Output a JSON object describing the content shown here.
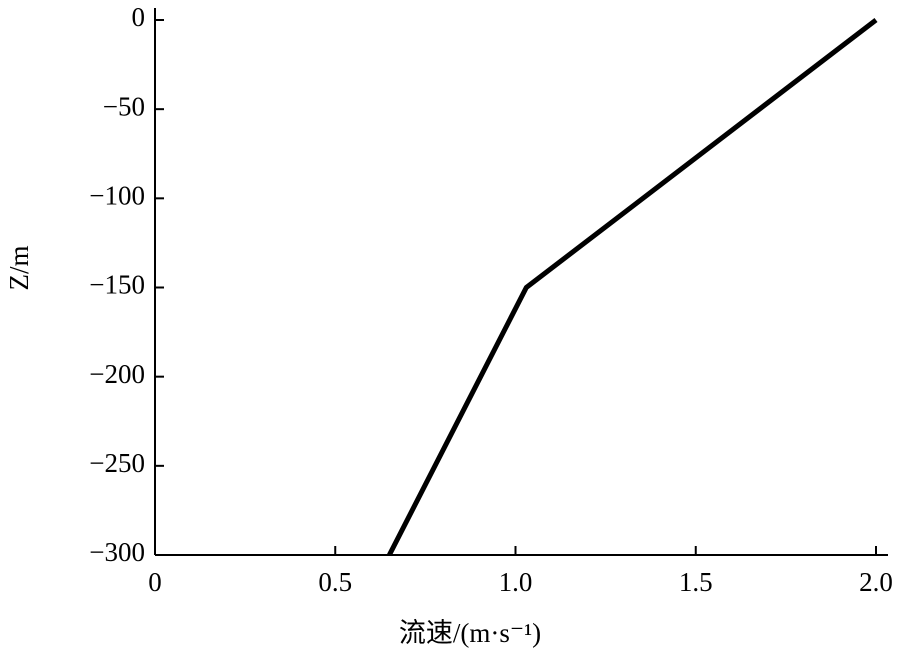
{
  "chart_data": {
    "type": "line",
    "xlabel": "流速/(m·s⁻¹)",
    "ylabel": "Z/m",
    "x": [
      0.65,
      1.03,
      2.0
    ],
    "series": [
      {
        "values": [
          -300,
          -150,
          0
        ],
        "color": "#000000"
      }
    ],
    "xlim": [
      0,
      2.0
    ],
    "ylim": [
      -300,
      0
    ],
    "xticks": [
      0,
      0.5,
      {
        "value": 1,
        "label": "1.0"
      },
      1.5,
      {
        "value": 2,
        "label": "2.0"
      }
    ],
    "yticks": [
      0,
      {
        "value": -50,
        "label": "−50"
      },
      {
        "value": -100,
        "label": "−100"
      },
      {
        "value": -150,
        "label": "−150"
      },
      {
        "value": -200,
        "label": "−200"
      },
      {
        "value": -250,
        "label": "−250"
      },
      {
        "value": -300,
        "label": "−300"
      }
    ]
  }
}
